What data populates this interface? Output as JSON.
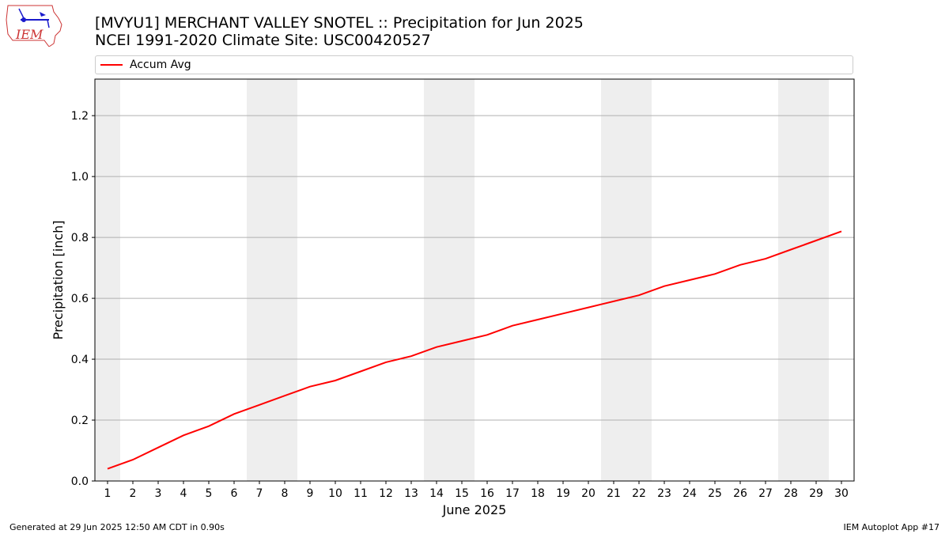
{
  "title_line1": "[MVYU1] MERCHANT VALLEY SNOTEL :: Precipitation for Jun 2025",
  "title_line2": "NCEI 1991-2020 Climate Site: USC00420527",
  "logo_text": "IEM",
  "footer_left": "Generated at 29 Jun 2025 12:50 AM CDT in 0.90s",
  "footer_right": "IEM Autoplot App #17",
  "chart_data": {
    "type": "line",
    "xlabel": "June 2025",
    "ylabel": "Precipitation [inch]",
    "ylim": [
      0,
      1.32
    ],
    "xlim": [
      0.5,
      30.5
    ],
    "yticks": [
      "0.0",
      "0.2",
      "0.4",
      "0.6",
      "0.8",
      "1.0",
      "1.2"
    ],
    "x": [
      1,
      2,
      3,
      4,
      5,
      6,
      7,
      8,
      9,
      10,
      11,
      12,
      13,
      14,
      15,
      16,
      17,
      18,
      19,
      20,
      21,
      22,
      23,
      24,
      25,
      26,
      27,
      28,
      29,
      30
    ],
    "series": [
      {
        "name": "Accum Avg",
        "color": "#ff0000",
        "values": [
          0.04,
          0.07,
          0.11,
          0.15,
          0.18,
          0.22,
          0.25,
          0.28,
          0.31,
          0.33,
          0.36,
          0.39,
          0.41,
          0.44,
          0.46,
          0.48,
          0.51,
          0.53,
          0.55,
          0.57,
          0.59,
          0.61,
          0.64,
          0.66,
          0.68,
          0.71,
          0.73,
          0.76,
          0.79,
          0.82
        ]
      }
    ],
    "weekend_days": [
      1,
      7,
      8,
      14,
      15,
      21,
      22,
      28,
      29
    ],
    "weekend_shade_color": "#eeeeee",
    "grid": "horizontal",
    "legend_position": "top"
  }
}
